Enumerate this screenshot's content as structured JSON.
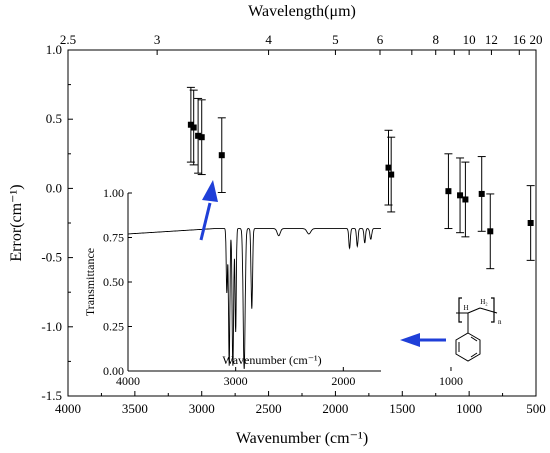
{
  "chart_data": [
    {
      "type": "scatter",
      "xlabel": "Wavenumber (cm⁻¹)",
      "ylabel": "Error(cm⁻¹)",
      "top_axis_label": "Wavelength(μm)",
      "xlim": [
        4000,
        500
      ],
      "ylim": [
        -1.5,
        1.0
      ],
      "x_ticks": [
        4000,
        3500,
        3000,
        2500,
        2000,
        1500,
        1000,
        500
      ],
      "y_ticks": [
        1.0,
        0.5,
        0.0,
        -0.5,
        -1.0,
        -1.5
      ],
      "x_tick_labels": [
        "4000",
        "3500",
        "3000",
        "2500",
        "2000",
        "1500",
        "1000",
        "500"
      ],
      "y_tick_labels": [
        "1.0",
        "0.5",
        "0.0",
        "-0.5",
        "-1.0",
        "-1.5"
      ],
      "top_ticks": [
        2.5,
        3,
        4,
        5,
        6,
        7,
        8,
        9,
        10,
        12,
        16,
        20
      ],
      "top_tick_labels": [
        "2.5",
        "3",
        "4",
        "5",
        "6",
        "",
        "8",
        "",
        "10",
        "12",
        "16",
        "20"
      ],
      "grid": false,
      "points": [
        {
          "x": 3081,
          "y": 0.46,
          "err": 0.27
        },
        {
          "x": 3060,
          "y": 0.44,
          "err": 0.27
        },
        {
          "x": 3027,
          "y": 0.38,
          "err": 0.27
        },
        {
          "x": 3000,
          "y": 0.37,
          "err": 0.27
        },
        {
          "x": 2850,
          "y": 0.24,
          "err": 0.27
        },
        {
          "x": 1603,
          "y": 0.15,
          "err": 0.27
        },
        {
          "x": 1583,
          "y": 0.1,
          "err": 0.27
        },
        {
          "x": 1155,
          "y": -0.02,
          "err": 0.27
        },
        {
          "x": 1068,
          "y": -0.05,
          "err": 0.27
        },
        {
          "x": 1028,
          "y": -0.08,
          "err": 0.27
        },
        {
          "x": 906,
          "y": -0.04,
          "err": 0.27
        },
        {
          "x": 842,
          "y": -0.31,
          "err": 0.27
        },
        {
          "x": 540,
          "y": -0.25,
          "err": 0.27
        }
      ],
      "marker_color": "#000000"
    },
    {
      "type": "line",
      "name": "inset-ir-spectrum",
      "xlabel": "Wavenumber (cm⁻¹)",
      "ylabel": "Transmittance",
      "xlim": [
        4000,
        1650
      ],
      "ylim": [
        0.0,
        1.0
      ],
      "x_ticks": [
        4000,
        3000,
        2000,
        1000
      ],
      "y_ticks": [
        0.0,
        0.25,
        0.5,
        0.75,
        1.0
      ],
      "x_tick_labels": [
        "4000",
        "3000",
        "2000",
        "1000"
      ],
      "y_tick_labels": [
        "0.00",
        "0.25",
        "0.50",
        "0.75",
        "1.00"
      ],
      "baseline": 0.8,
      "baseline_start": 0.77,
      "bands": [
        {
          "x": 3082,
          "y": 0.44,
          "w": 8
        },
        {
          "x": 3060,
          "y": 0.03,
          "w": 9
        },
        {
          "x": 3026,
          "y": 0.03,
          "w": 10
        },
        {
          "x": 3000,
          "y": 0.22,
          "w": 8
        },
        {
          "x": 2921,
          "y": 0.01,
          "w": 13
        },
        {
          "x": 2850,
          "y": 0.35,
          "w": 10
        },
        {
          "x": 2600,
          "y": 0.76,
          "w": 20
        },
        {
          "x": 2320,
          "y": 0.77,
          "w": 25
        },
        {
          "x": 1942,
          "y": 0.69,
          "w": 10
        },
        {
          "x": 1870,
          "y": 0.7,
          "w": 10
        },
        {
          "x": 1801,
          "y": 0.72,
          "w": 10
        },
        {
          "x": 1745,
          "y": 0.74,
          "w": 12
        },
        {
          "x": 1601,
          "y": 0.4,
          "w": 5
        },
        {
          "x": 1583,
          "y": 0.55,
          "w": 5
        },
        {
          "x": 1493,
          "y": 0.05,
          "w": 6
        },
        {
          "x": 1452,
          "y": 0.03,
          "w": 7
        },
        {
          "x": 1370,
          "y": 0.62,
          "w": 8
        },
        {
          "x": 1315,
          "y": 0.66,
          "w": 8
        },
        {
          "x": 1181,
          "y": 0.55,
          "w": 6
        },
        {
          "x": 1155,
          "y": 0.5,
          "w": 6
        },
        {
          "x": 1069,
          "y": 0.45,
          "w": 6
        },
        {
          "x": 1028,
          "y": 0.3,
          "w": 6
        },
        {
          "x": 982,
          "y": 0.6,
          "w": 6
        },
        {
          "x": 906,
          "y": 0.55,
          "w": 6
        },
        {
          "x": 842,
          "y": 0.65,
          "w": 6
        },
        {
          "x": 757,
          "y": 0.02,
          "w": 5
        },
        {
          "x": 700,
          "y": 0.0,
          "w": 6
        }
      ]
    }
  ],
  "structure_labels": {
    "h2": "H₂",
    "h": "H",
    "n": "n"
  },
  "arrow_color": "#1f3fd8"
}
